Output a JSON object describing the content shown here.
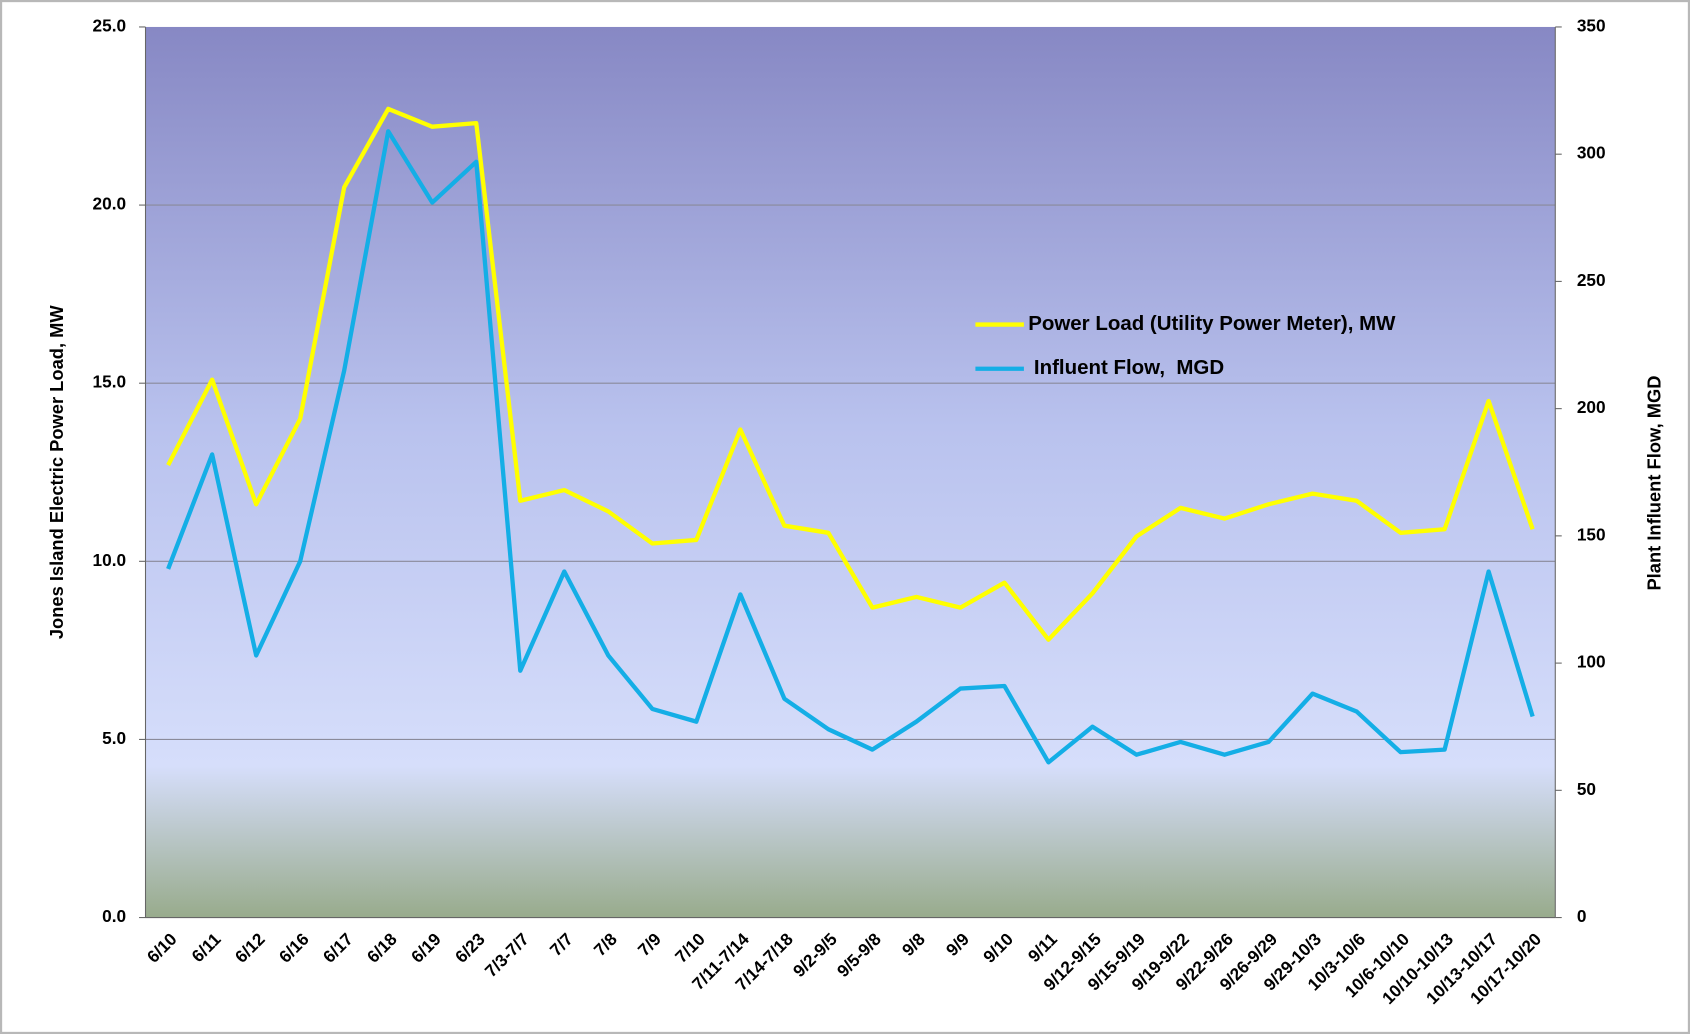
{
  "chart_data": {
    "type": "line",
    "y_label": "Jones Island Electric Power Load, MW",
    "y2_label": "Plant Influent Flow, MGD",
    "categories": [
      "6/10",
      "6/11",
      "6/12",
      "6/16",
      "6/17",
      "6/18",
      "6/19",
      "6/23",
      "7/3-7/7",
      "7/7",
      "7/8",
      "7/9",
      "7/10",
      "7/11-7/14",
      "7/14-7/18",
      "9/2-9/5",
      "9/5-9/8",
      "9/8",
      "9/9",
      "9/10",
      "9/11",
      "9/12-9/15",
      "9/15-9/19",
      "9/19-9/22",
      "9/22-9/26",
      "9/26-9/29",
      "9/29-10/3",
      "10/3-10/6",
      "10/6-10/10",
      "10/10-10/13",
      "10/13-10/17",
      "10/17-10/20"
    ],
    "series": [
      {
        "name": "Power Load (Utility Power Meter), MW",
        "color": "#ffff00",
        "values": [
          12.7,
          15.1,
          11.6,
          14.0,
          20.5,
          22.7,
          22.2,
          22.3,
          11.7,
          12.0,
          11.4,
          10.5,
          10.6,
          13.7,
          11.0,
          10.8,
          8.7,
          9.0,
          8.7,
          9.4,
          7.8,
          9.1,
          10.7,
          11.5,
          11.2,
          11.6,
          11.9,
          11.7,
          10.8,
          10.9,
          14.5,
          10.9
        ]
      },
      {
        "name": " Influent Flow,  MGD",
        "color": "#14aee6",
        "axis": "y2",
        "values": [
          137,
          182,
          103,
          140,
          215,
          309,
          281,
          297,
          97,
          136,
          103,
          82,
          77,
          127,
          86,
          74,
          66,
          77,
          90,
          91,
          61,
          75,
          64,
          69,
          64,
          69,
          88,
          81,
          65,
          66,
          136,
          79
        ]
      }
    ],
    "ylim": [
      0,
      25
    ],
    "yticks": [
      {
        "value": 0,
        "label": "0.0"
      },
      {
        "value": 5,
        "label": "5.0"
      },
      {
        "value": 10,
        "label": "10.0"
      },
      {
        "value": 15,
        "label": "15.0"
      },
      {
        "value": 20,
        "label": "20.0"
      },
      {
        "value": 25,
        "label": "25.0"
      }
    ],
    "y2lim": [
      0,
      350
    ],
    "y2ticks": [
      0,
      50,
      100,
      150,
      200,
      250,
      300,
      350
    ],
    "grid": true,
    "legend": "right"
  }
}
